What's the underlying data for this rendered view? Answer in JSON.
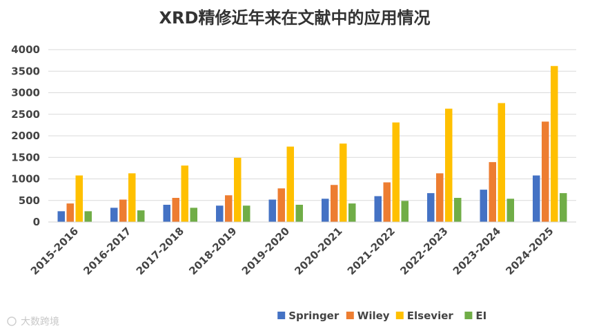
{
  "chart_data": {
    "type": "bar",
    "title": "XRD精修近年来在文献中的应用情况",
    "categories": [
      "2015-2016",
      "2016-2017",
      "2017-2018",
      "2018-2019",
      "2019-2020",
      "2020-2021",
      "2021-2022",
      "2022-2023",
      "2023-2024",
      "2024-2025"
    ],
    "series": [
      {
        "name": "Springer",
        "color": "#4472C4",
        "values": [
          250,
          330,
          400,
          380,
          520,
          540,
          600,
          670,
          750,
          1080
        ]
      },
      {
        "name": "Wiley",
        "color": "#ED7D31",
        "values": [
          430,
          520,
          560,
          620,
          780,
          860,
          920,
          1130,
          1390,
          2330
        ]
      },
      {
        "name": "Elsevier",
        "color": "#FFC000",
        "values": [
          1080,
          1130,
          1310,
          1490,
          1750,
          1820,
          2310,
          2630,
          2760,
          3620
        ]
      },
      {
        "name": "EI",
        "color": "#70AD47",
        "values": [
          250,
          270,
          330,
          380,
          400,
          430,
          490,
          560,
          540,
          670
        ]
      }
    ],
    "ylim": [
      0,
      4000
    ],
    "yticks": [
      0,
      500,
      1000,
      1500,
      2000,
      2500,
      3000,
      3500,
      4000
    ],
    "grid": true,
    "legend_position": "bottom",
    "xlabel": "",
    "ylabel": ""
  },
  "watermark": "大数跨境"
}
